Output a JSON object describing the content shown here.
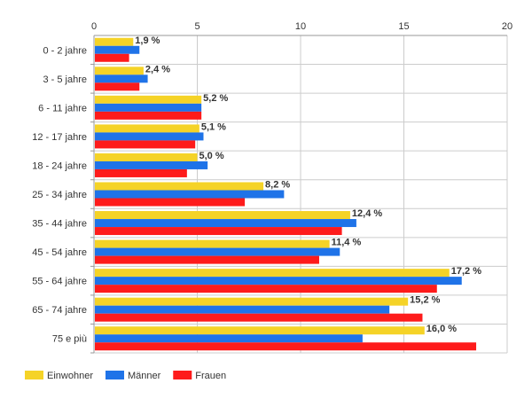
{
  "chart_data": {
    "type": "bar",
    "orientation": "horizontal",
    "categories": [
      "0 - 2 jahre",
      "3 - 5 jahre",
      "6 - 11 jahre",
      "12 - 17 jahre",
      "18 - 24 jahre",
      "25 - 34 jahre",
      "35 - 44 jahre",
      "45 - 54 jahre",
      "55 - 64 jahre",
      "65 - 74 jahre",
      "75 e più"
    ],
    "xlim": [
      0,
      20
    ],
    "xticks": [
      0,
      5,
      10,
      15,
      20
    ],
    "x_axis_position": "top",
    "grid": true,
    "legend_position": "bottom-left",
    "series": [
      {
        "name": "Einwohner",
        "color": "#f5d327",
        "values": [
          1.9,
          2.4,
          5.2,
          5.1,
          5.0,
          8.2,
          12.4,
          11.4,
          17.2,
          15.2,
          16.0
        ]
      },
      {
        "name": "Männer",
        "color": "#1f73e8",
        "values": [
          2.2,
          2.6,
          5.2,
          5.3,
          5.5,
          9.2,
          12.7,
          11.9,
          17.8,
          14.3,
          13.0
        ]
      },
      {
        "name": "Frauen",
        "color": "#fe1b1b",
        "values": [
          1.7,
          2.2,
          5.2,
          4.9,
          4.5,
          7.3,
          12.0,
          10.9,
          16.6,
          15.9,
          18.5
        ]
      }
    ],
    "data_labels": [
      "1,9 %",
      "2,4 %",
      "5,2 %",
      "5,1 %",
      "5,0 %",
      "8,2 %",
      "12,4 %",
      "11,4 %",
      "17,2 %",
      "15,2 %",
      "16,0 %"
    ]
  }
}
